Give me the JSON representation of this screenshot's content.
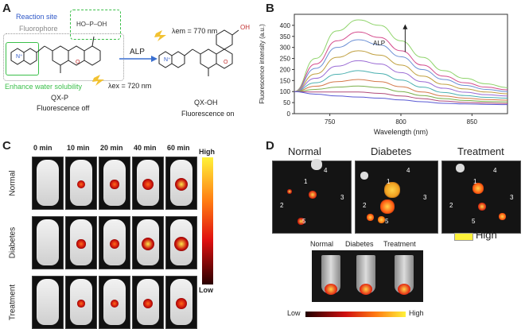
{
  "panelA": {
    "letter": "A",
    "reaction_site": "Reaction site",
    "fluorophore": "Fluorophore",
    "enhance": "Enhance water solubility",
    "lambda_em": "λem = 770 nm",
    "lambda_ex": "λex = 720 nm",
    "alp": "ALP",
    "probe_name": "QX-P",
    "probe_state": "Fluorescence off",
    "product_name": "QX-OH",
    "product_state": "Fluorescence on",
    "phosphate": "HO–P–OH",
    "oh": "OH"
  },
  "panelB": {
    "letter": "B",
    "arrow_label": "ALP"
  },
  "chart_data": {
    "type": "line",
    "xlabel": "Wavelength (nm)",
    "ylabel": "Fluorescence intensity (a.u.)",
    "xlim": [
      725,
      875
    ],
    "ylim": [
      0,
      450
    ],
    "xticks": [
      "750",
      "800",
      "850"
    ],
    "yticks": [
      "0",
      "50",
      "100",
      "150",
      "200",
      "250",
      "300",
      "350",
      "400"
    ],
    "x": [
      725,
      740,
      755,
      770,
      785,
      800,
      815,
      830,
      845,
      860,
      875
    ],
    "series": [
      {
        "color": "#8fd46b",
        "values": [
          100,
          250,
          375,
          425,
          400,
          330,
          255,
          195,
          160,
          135,
          118
        ]
      },
      {
        "color": "#d44b8c",
        "values": [
          100,
          225,
          330,
          370,
          345,
          285,
          220,
          170,
          140,
          120,
          108
        ]
      },
      {
        "color": "#6b8fd4",
        "values": [
          100,
          205,
          300,
          335,
          312,
          258,
          200,
          155,
          128,
          110,
          100
        ]
      },
      {
        "color": "#c0a040",
        "values": [
          100,
          180,
          255,
          285,
          265,
          220,
          170,
          133,
          112,
          98,
          90
        ]
      },
      {
        "color": "#9a6bd4",
        "values": [
          100,
          160,
          215,
          240,
          225,
          186,
          145,
          115,
          97,
          86,
          80
        ]
      },
      {
        "color": "#4bb0b0",
        "values": [
          100,
          140,
          178,
          195,
          182,
          152,
          120,
          96,
          82,
          74,
          70
        ]
      },
      {
        "color": "#d47a4b",
        "values": [
          100,
          124,
          145,
          155,
          145,
          122,
          98,
          80,
          70,
          64,
          61
        ]
      },
      {
        "color": "#7ab04b",
        "values": [
          100,
          110,
          120,
          125,
          118,
          100,
          82,
          68,
          60,
          55,
          53
        ]
      },
      {
        "color": "#b04b7a",
        "values": [
          100,
          98,
          98,
          98,
          92,
          80,
          68,
          57,
          51,
          48,
          46
        ]
      },
      {
        "color": "#5a5ad4",
        "values": [
          100,
          88,
          80,
          75,
          70,
          62,
          54,
          47,
          44,
          42,
          41
        ]
      }
    ]
  },
  "panelC": {
    "letter": "C",
    "times": [
      "0 min",
      "10 min",
      "20 min",
      "40 min",
      "60 min"
    ],
    "rows": [
      "Normal",
      "Diabetes",
      "Treatment"
    ],
    "high": "High",
    "low": "Low",
    "intensity": [
      [
        0,
        0.35,
        0.45,
        0.65,
        0.8
      ],
      [
        0,
        0.45,
        0.55,
        0.8,
        0.95
      ],
      [
        0,
        0.3,
        0.4,
        0.55,
        0.7
      ]
    ]
  },
  "panelD": {
    "letter": "D",
    "groups": [
      "Normal",
      "Diabetes",
      "Treatment"
    ],
    "high": "High",
    "low": "Low",
    "organ_labels": [
      "1",
      "2",
      "3",
      "4",
      "5"
    ]
  }
}
